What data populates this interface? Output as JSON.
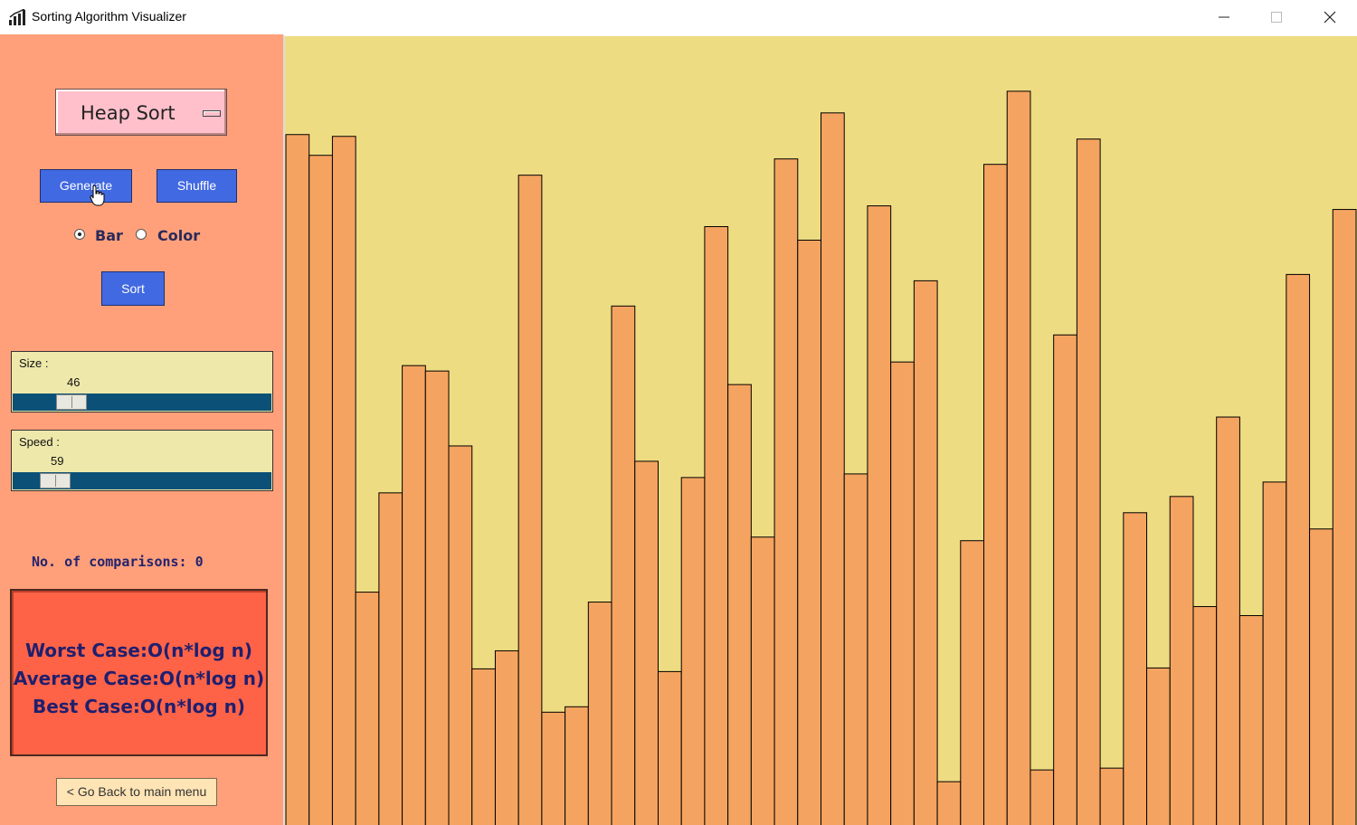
{
  "window": {
    "title": "Sorting Algorithm Visualizer"
  },
  "controls": {
    "algorithm": "Heap Sort",
    "generate_label": "Generate",
    "shuffle_label": "Shuffle",
    "sort_label": "Sort",
    "view_options": [
      {
        "label": "Bar",
        "checked": true
      },
      {
        "label": "Color",
        "checked": false
      }
    ],
    "size": {
      "label": "Size :",
      "value": "46",
      "min": 3,
      "max": 200
    },
    "speed": {
      "label": "Speed :",
      "value": "59",
      "min": 1,
      "max": 1000
    },
    "comparisons_text": "No. of comparisons: 0",
    "complexity": {
      "worst": "Worst Case:O(n*log n)",
      "average": "Average Case:O(n*log n)",
      "best": "Best Case:O(n*log n)"
    },
    "back_label": "< Go Back to main menu"
  },
  "colors": {
    "panel": "#ffa07a",
    "canvas": "#eedc82",
    "bar_fill": "#f4a460",
    "button_blue": "#4169e1",
    "complexity_bg": "#ff6347",
    "slider_bg": "#eee8aa",
    "slider_track": "#0b5077"
  },
  "chart_data": {
    "type": "bar",
    "values": [
      765,
      742,
      763,
      258,
      368,
      509,
      503,
      420,
      173,
      193,
      720,
      125,
      131,
      247,
      575,
      403,
      170,
      385,
      663,
      488,
      319,
      738,
      648,
      789,
      389,
      686,
      513,
      603,
      48,
      315,
      732,
      813,
      61,
      543,
      760,
      63,
      346,
      174,
      364,
      242,
      452,
      232,
      380,
      610,
      328,
      682
    ],
    "ylim": [
      0,
      874
    ]
  }
}
